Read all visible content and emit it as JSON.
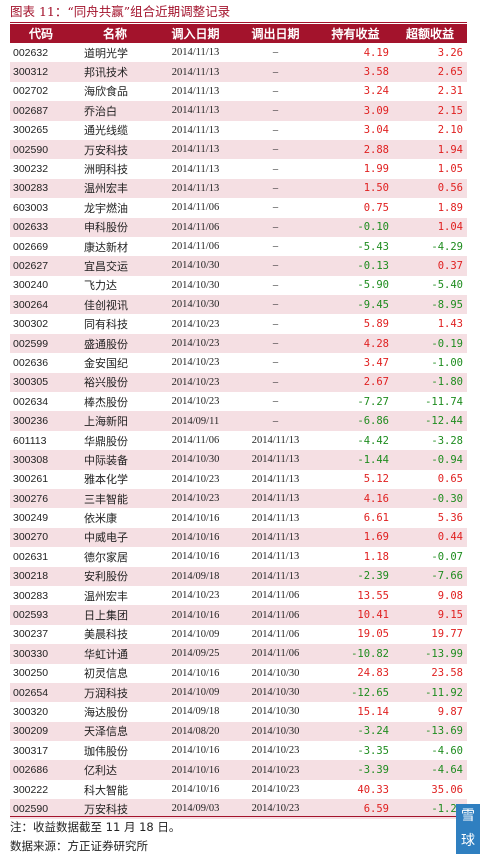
{
  "title": "图表 11：“同舟共赢”组合近期调整记录",
  "headers": [
    "代码",
    "名称",
    "调入日期",
    "调出日期",
    "持有收益",
    "超额收益"
  ],
  "rows": [
    [
      "002632",
      "道明光学",
      "2014/11/13",
      "–",
      "4.19",
      "3.26"
    ],
    [
      "300312",
      "邦讯技术",
      "2014/11/13",
      "–",
      "3.58",
      "2.65"
    ],
    [
      "002702",
      "海欣食品",
      "2014/11/13",
      "–",
      "3.24",
      "2.31"
    ],
    [
      "002687",
      "乔治白",
      "2014/11/13",
      "–",
      "3.09",
      "2.15"
    ],
    [
      "300265",
      "通光线缆",
      "2014/11/13",
      "–",
      "3.04",
      "2.10"
    ],
    [
      "002590",
      "万安科技",
      "2014/11/13",
      "–",
      "2.88",
      "1.94"
    ],
    [
      "300232",
      "洲明科技",
      "2014/11/13",
      "–",
      "1.99",
      "1.05"
    ],
    [
      "300283",
      "温州宏丰",
      "2014/11/13",
      "–",
      "1.50",
      "0.56"
    ],
    [
      "603003",
      "龙宇燃油",
      "2014/11/06",
      "–",
      "0.75",
      "1.89"
    ],
    [
      "002633",
      "申科股份",
      "2014/11/06",
      "–",
      "-0.10",
      "1.04"
    ],
    [
      "002669",
      "康达新材",
      "2014/11/06",
      "–",
      "-5.43",
      "-4.29"
    ],
    [
      "002627",
      "宜昌交运",
      "2014/10/30",
      "–",
      "-0.13",
      "0.37"
    ],
    [
      "300240",
      "飞力达",
      "2014/10/30",
      "–",
      "-5.90",
      "-5.40"
    ],
    [
      "300264",
      "佳创视讯",
      "2014/10/30",
      "–",
      "-9.45",
      "-8.95"
    ],
    [
      "300302",
      "同有科技",
      "2014/10/23",
      "–",
      "5.89",
      "1.43"
    ],
    [
      "002599",
      "盛通股份",
      "2014/10/23",
      "–",
      "4.28",
      "-0.19"
    ],
    [
      "002636",
      "金安国纪",
      "2014/10/23",
      "–",
      "3.47",
      "-1.00"
    ],
    [
      "300305",
      "裕兴股份",
      "2014/10/23",
      "–",
      "2.67",
      "-1.80"
    ],
    [
      "002634",
      "棒杰股份",
      "2014/10/23",
      "–",
      "-7.27",
      "-11.74"
    ],
    [
      "300236",
      "上海新阳",
      "2014/09/11",
      "–",
      "-6.86",
      "-12.44"
    ],
    [
      "601113",
      "华鼎股份",
      "2014/11/06",
      "2014/11/13",
      "-4.42",
      "-3.28"
    ],
    [
      "300308",
      "中际装备",
      "2014/10/30",
      "2014/11/13",
      "-1.44",
      "-0.94"
    ],
    [
      "300261",
      "雅本化学",
      "2014/10/23",
      "2014/11/13",
      "5.12",
      "0.65"
    ],
    [
      "300276",
      "三丰智能",
      "2014/10/23",
      "2014/11/13",
      "4.16",
      "-0.30"
    ],
    [
      "300249",
      "依米康",
      "2014/10/16",
      "2014/11/13",
      "6.61",
      "5.36"
    ],
    [
      "300270",
      "中威电子",
      "2014/10/16",
      "2014/11/13",
      "1.69",
      "0.44"
    ],
    [
      "002631",
      "德尔家居",
      "2014/10/16",
      "2014/11/13",
      "1.18",
      "-0.07"
    ],
    [
      "300218",
      "安利股份",
      "2014/09/18",
      "2014/11/13",
      "-2.39",
      "-7.66"
    ],
    [
      "300283",
      "温州宏丰",
      "2014/10/23",
      "2014/11/06",
      "13.55",
      "9.08"
    ],
    [
      "002593",
      "日上集团",
      "2014/10/16",
      "2014/11/06",
      "10.41",
      "9.15"
    ],
    [
      "300237",
      "美晨科技",
      "2014/10/09",
      "2014/11/06",
      "19.05",
      "19.77"
    ],
    [
      "300330",
      "华虹计通",
      "2014/09/25",
      "2014/11/06",
      "-10.82",
      "-13.99"
    ],
    [
      "300250",
      "初灵信息",
      "2014/10/16",
      "2014/10/30",
      "24.83",
      "23.58"
    ],
    [
      "002654",
      "万润科技",
      "2014/10/09",
      "2014/10/30",
      "-12.65",
      "-11.92"
    ],
    [
      "300320",
      "海达股份",
      "2014/09/18",
      "2014/10/30",
      "15.14",
      "9.87"
    ],
    [
      "300209",
      "天泽信息",
      "2014/08/20",
      "2014/10/30",
      "-3.24",
      "-13.69"
    ],
    [
      "300317",
      "珈伟股份",
      "2014/10/16",
      "2014/10/23",
      "-3.35",
      "-4.60"
    ],
    [
      "002686",
      "亿利达",
      "2014/10/16",
      "2014/10/23",
      "-3.39",
      "-4.64"
    ],
    [
      "300222",
      "科大智能",
      "2014/10/16",
      "2014/10/23",
      "40.33",
      "35.06"
    ],
    [
      "002590",
      "万安科技",
      "2014/09/03",
      "2014/10/23",
      "6.59",
      "-1.20"
    ]
  ],
  "note": "注：收益数据截至 11 月 18 日。",
  "source": "数据来源：方正证券研究所",
  "watermark": [
    "雪",
    "球"
  ],
  "colors": {
    "accent": "#a3132c",
    "positive": "#e02020",
    "negative": "#1e8c1e",
    "stripe": "#f5dfe3"
  }
}
